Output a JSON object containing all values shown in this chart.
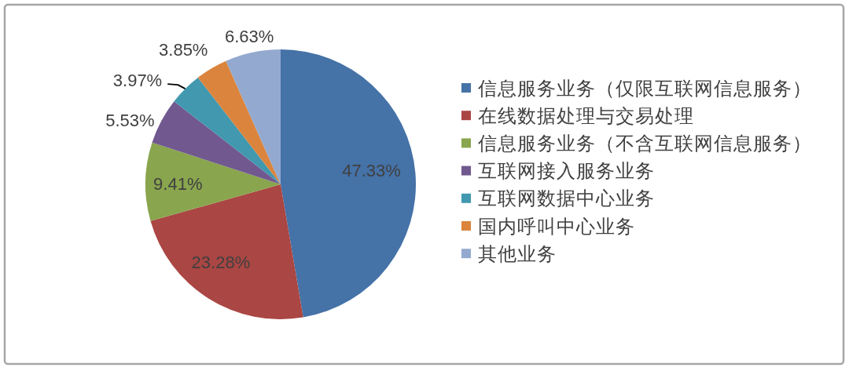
{
  "chart_data": {
    "type": "pie",
    "categories": [
      "信息服务业务（仅限互联网信息服务）",
      "在线数据处理与交易处理",
      "信息服务业务（不含互联网信息服务）",
      "互联网接入服务业务",
      "互联网数据中心业务",
      "国内呼叫中心业务",
      "其他业务"
    ],
    "values": [
      47.33,
      23.28,
      9.41,
      5.53,
      3.97,
      3.85,
      6.63
    ],
    "colors": [
      "#4572a7",
      "#aa4643",
      "#89a54e",
      "#71588f",
      "#4198af",
      "#db843d",
      "#93a9cf"
    ],
    "value_labels": [
      "47.33%",
      "23.28%",
      "9.41%",
      "5.53%",
      "3.97%",
      "3.85%",
      "6.63%"
    ],
    "legend": "right"
  }
}
